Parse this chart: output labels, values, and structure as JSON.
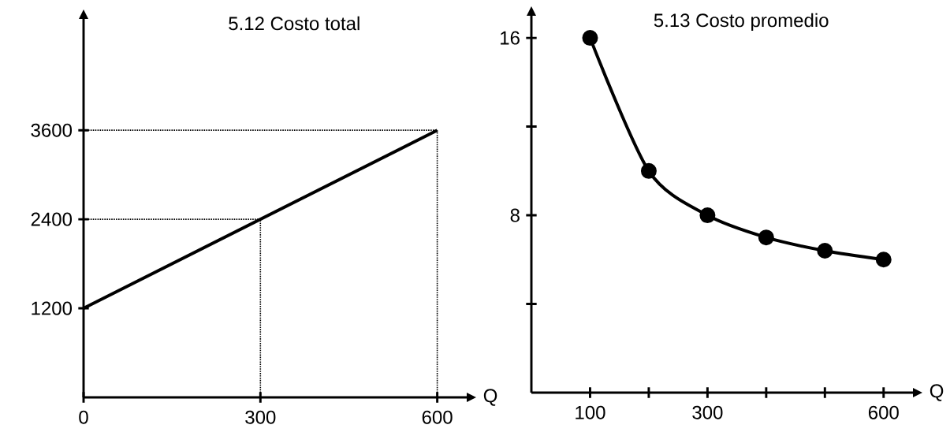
{
  "chart_data": [
    {
      "type": "line",
      "title": "5.12 Costo total",
      "xlabel": "Q",
      "x": [
        0,
        600
      ],
      "values": [
        1200,
        3600
      ],
      "color": "#000000",
      "marker": "none",
      "xlim": [
        0,
        650
      ],
      "ylim": [
        0,
        5100
      ],
      "xticks": [
        0,
        300,
        600
      ],
      "yticks": [
        1200,
        2400,
        3600
      ],
      "ref_lines": [
        {
          "axis": "x",
          "value": 300,
          "line_style": "dotted"
        },
        {
          "axis": "x",
          "value": 600,
          "line_style": "dotted"
        },
        {
          "axis": "y",
          "value": 2400,
          "line_style": "dotted"
        },
        {
          "axis": "y",
          "value": 3600,
          "line_style": "dotted"
        }
      ]
    },
    {
      "type": "line",
      "title": "5.13 Costo promedio",
      "xlabel": "Q",
      "x": [
        100,
        200,
        300,
        400,
        500,
        600
      ],
      "values": [
        16,
        10,
        8,
        7,
        6.4,
        6
      ],
      "color": "#000000",
      "marker": "circle",
      "xlim": [
        0,
        650
      ],
      "ylim": [
        0,
        17
      ],
      "xticks": [
        100,
        {
          "value": 200,
          "label": null
        },
        300,
        {
          "value": 400,
          "label": null
        },
        {
          "value": 500,
          "label": null
        },
        600
      ],
      "yticks": [
        {
          "value": 4,
          "label": null
        },
        8,
        {
          "value": 12,
          "label": null
        },
        16
      ]
    }
  ]
}
